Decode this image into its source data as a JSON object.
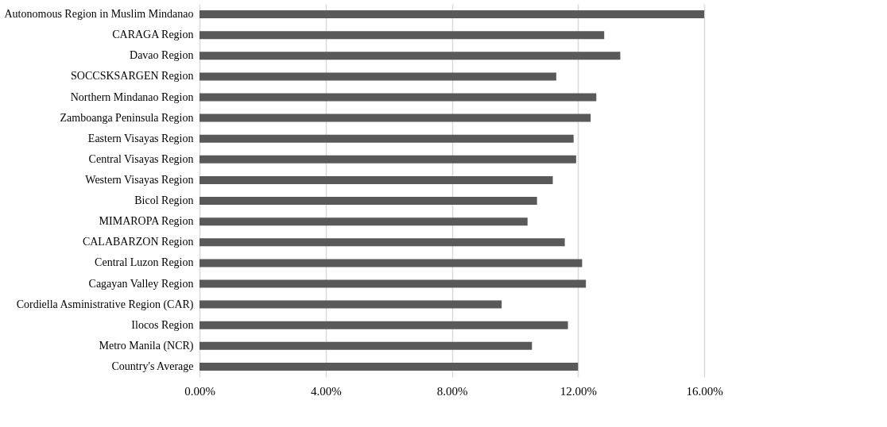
{
  "chart_data": {
    "type": "bar",
    "orientation": "horizontal",
    "categories": [
      "Autonomous Region in Muslim Mindanao",
      "CARAGA Region",
      "Davao Region",
      "SOCCSKSARGEN Region",
      "Northern Mindanao Region",
      "Zamboanga Peninsula Region",
      "Eastern Visayas Region",
      "Central Visayas Region",
      "Western Visayas Region",
      "Bicol Region",
      "MIMAROPA Region",
      "CALABARZON Region",
      "Central Luzon Region",
      "Cagayan Valley Region",
      "Cordiella Asministrative Region (CAR)",
      "Ilocos Region",
      "Metro Manila (NCR)",
      "Country's Average"
    ],
    "values": [
      16.0,
      12.83,
      13.34,
      11.31,
      12.58,
      12.4,
      11.86,
      11.94,
      11.2,
      10.7,
      10.4,
      11.58,
      12.13,
      12.25,
      9.58,
      11.68,
      10.54,
      12.0
    ],
    "color": "#595959",
    "xlim": [
      0,
      16
    ],
    "xticks": [
      {
        "value": 0,
        "label": "0.00%"
      },
      {
        "value": 4,
        "label": "4.00%"
      },
      {
        "value": 8,
        "label": "8.00%"
      },
      {
        "value": 12,
        "label": "12.00%"
      },
      {
        "value": 16,
        "label": "16.00%"
      }
    ],
    "grid": "x"
  }
}
